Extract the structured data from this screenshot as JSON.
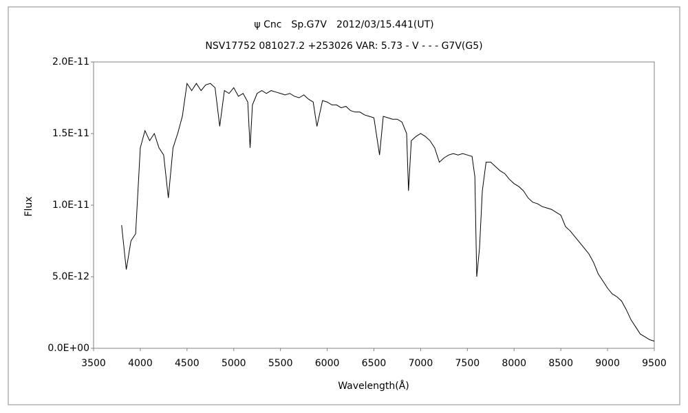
{
  "chart_data": {
    "type": "line",
    "title": "ψ Cnc　Sp.G7V　2012/03/15.441(UT)",
    "subtitle": "NSV17752 081027.2 +253026 VAR: 5.73 - V - - - G7V(G5)",
    "x_label": "Wavelength(Å)",
    "y_label": "Flux",
    "color": "#000000",
    "x": [
      3800,
      3850,
      3900,
      3950,
      4000,
      4050,
      4100,
      4150,
      4200,
      4250,
      4300,
      4350,
      4400,
      4450,
      4500,
      4550,
      4600,
      4650,
      4700,
      4750,
      4800,
      4850,
      4900,
      4950,
      5000,
      5050,
      5100,
      5150,
      5175,
      5200,
      5250,
      5300,
      5350,
      5400,
      5450,
      5500,
      5550,
      5600,
      5650,
      5700,
      5750,
      5800,
      5850,
      5890,
      5950,
      6000,
      6050,
      6100,
      6150,
      6200,
      6250,
      6300,
      6350,
      6400,
      6450,
      6500,
      6560,
      6600,
      6650,
      6700,
      6750,
      6800,
      6850,
      6870,
      6900,
      6950,
      7000,
      7050,
      7100,
      7150,
      7200,
      7250,
      7300,
      7350,
      7400,
      7450,
      7500,
      7550,
      7580,
      7600,
      7630,
      7660,
      7700,
      7750,
      7800,
      7850,
      7900,
      7950,
      8000,
      8050,
      8100,
      8150,
      8200,
      8250,
      8300,
      8350,
      8400,
      8450,
      8500,
      8550,
      8600,
      8650,
      8700,
      8750,
      8800,
      8850,
      8900,
      8950,
      9000,
      9050,
      9100,
      9150,
      9200,
      9250,
      9300,
      9350,
      9400,
      9450,
      9500
    ],
    "values": [
      8.6e-12,
      5.5e-12,
      7.5e-12,
      8e-12,
      1.4e-11,
      1.52e-11,
      1.45e-11,
      1.5e-11,
      1.4e-11,
      1.35e-11,
      1.05e-11,
      1.4e-11,
      1.5e-11,
      1.62e-11,
      1.85e-11,
      1.8e-11,
      1.85e-11,
      1.8e-11,
      1.84e-11,
      1.85e-11,
      1.82e-11,
      1.55e-11,
      1.8e-11,
      1.78e-11,
      1.82e-11,
      1.76e-11,
      1.78e-11,
      1.72e-11,
      1.4e-11,
      1.7e-11,
      1.78e-11,
      1.8e-11,
      1.78e-11,
      1.8e-11,
      1.79e-11,
      1.78e-11,
      1.77e-11,
      1.78e-11,
      1.76e-11,
      1.75e-11,
      1.77e-11,
      1.74e-11,
      1.72e-11,
      1.55e-11,
      1.73e-11,
      1.72e-11,
      1.7e-11,
      1.7e-11,
      1.68e-11,
      1.69e-11,
      1.66e-11,
      1.65e-11,
      1.65e-11,
      1.63e-11,
      1.62e-11,
      1.61e-11,
      1.35e-11,
      1.62e-11,
      1.61e-11,
      1.6e-11,
      1.6e-11,
      1.58e-11,
      1.5e-11,
      1.1e-11,
      1.45e-11,
      1.48e-11,
      1.5e-11,
      1.48e-11,
      1.45e-11,
      1.4e-11,
      1.3e-11,
      1.33e-11,
      1.35e-11,
      1.36e-11,
      1.35e-11,
      1.36e-11,
      1.35e-11,
      1.34e-11,
      1.2e-11,
      5e-12,
      7e-12,
      1.1e-11,
      1.3e-11,
      1.3e-11,
      1.27e-11,
      1.24e-11,
      1.22e-11,
      1.18e-11,
      1.15e-11,
      1.13e-11,
      1.1e-11,
      1.05e-11,
      1.02e-11,
      1.01e-11,
      9.9e-12,
      9.8e-12,
      9.7e-12,
      9.5e-12,
      9.3e-12,
      8.5e-12,
      8.2e-12,
      7.8e-12,
      7.4e-12,
      7e-12,
      6.6e-12,
      6e-12,
      5.2e-12,
      4.7e-12,
      4.2e-12,
      3.8e-12,
      3.6e-12,
      3.3e-12,
      2.7e-12,
      2e-12,
      1.5e-12,
      1e-12,
      8e-13,
      6e-13,
      5e-13
    ],
    "xlim": [
      3500,
      9500
    ],
    "xticks": [
      3500,
      4000,
      4500,
      5000,
      5500,
      6000,
      6500,
      7000,
      7500,
      8000,
      8500,
      9000,
      9500
    ],
    "ylim": [
      0,
      2e-11
    ],
    "yticks": [
      {
        "value": 0,
        "label": "0.0E+00"
      },
      {
        "value": 5e-12,
        "label": "5.0E-12"
      },
      {
        "value": 1e-11,
        "label": "1.0E-11"
      },
      {
        "value": 1.5e-11,
        "label": "1.5E-11"
      },
      {
        "value": 2e-11,
        "label": "2.0E-11"
      }
    ],
    "grid": false
  }
}
